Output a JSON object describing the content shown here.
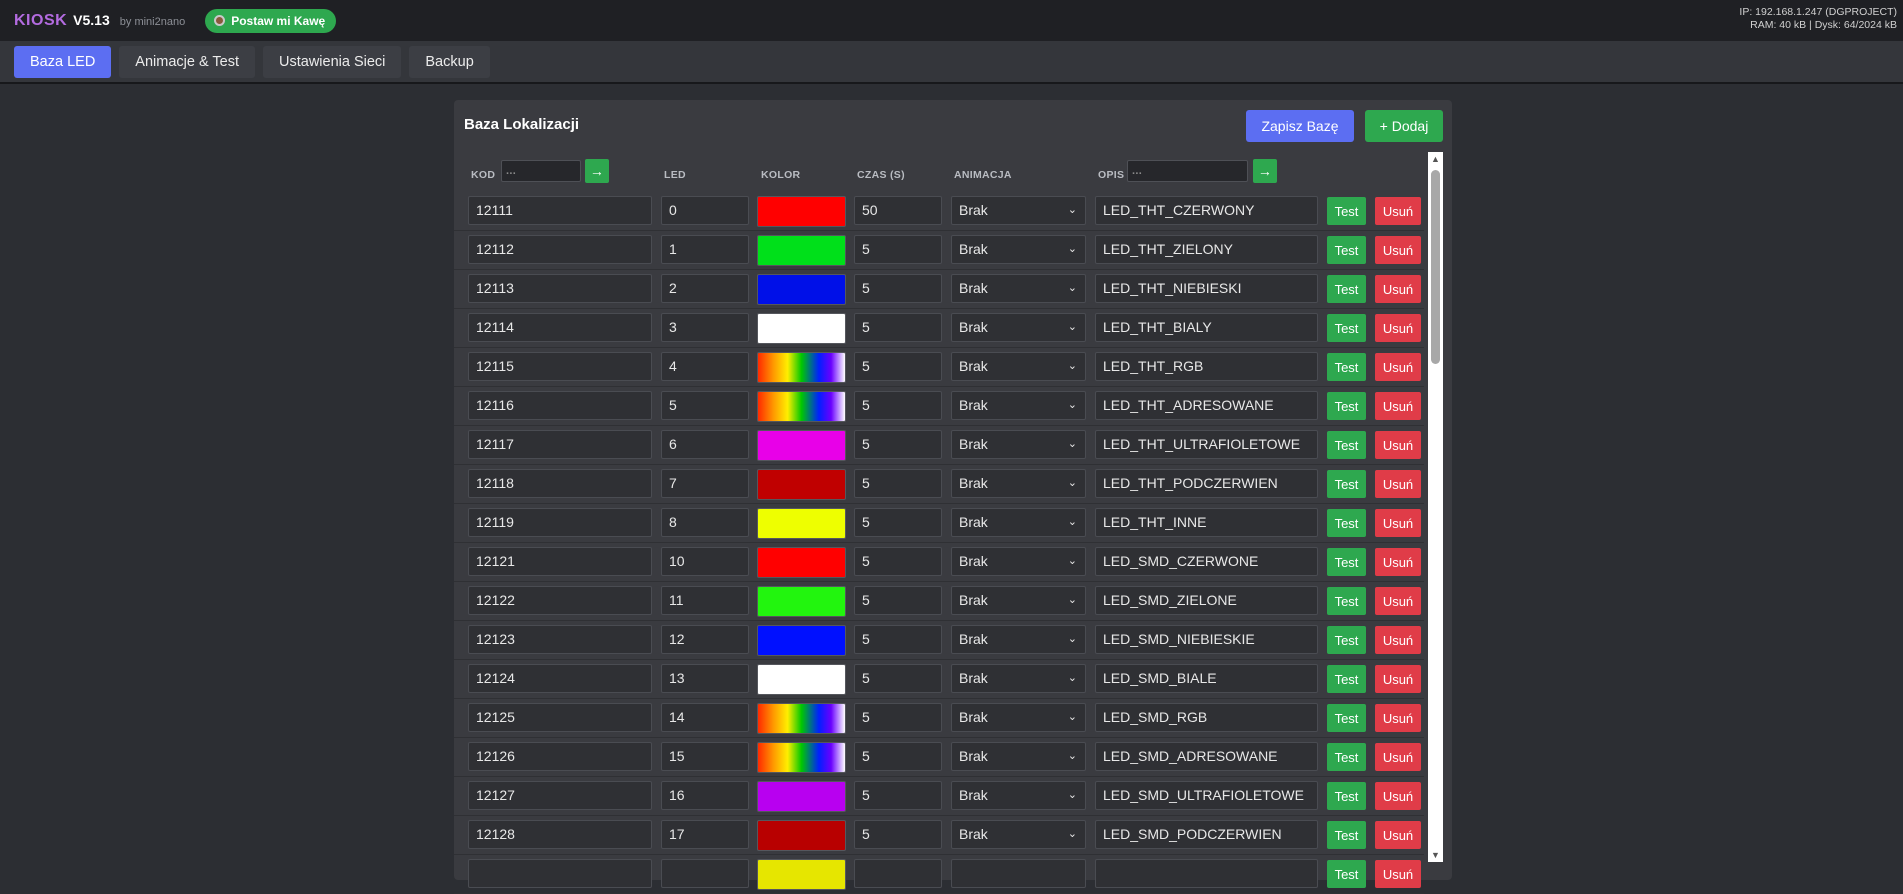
{
  "header": {
    "brand_name": "KIOSK",
    "brand_version": "V5.13",
    "brand_by": "by mini2nano",
    "coffee_label": "Postaw mi Kawę",
    "ip_line": "IP: 192.168.1.247 (DGPROJECT)",
    "mem_line": "RAM: 40 kB | Dysk: 64/2024 kB"
  },
  "nav": {
    "tabs": [
      {
        "label": "Baza LED",
        "active": true
      },
      {
        "label": "Animacje & Test",
        "active": false
      },
      {
        "label": "Ustawienia Sieci",
        "active": false
      },
      {
        "label": "Backup",
        "active": false
      }
    ]
  },
  "panel": {
    "title": "Baza Lokalizacji",
    "save_label": "Zapisz Bazę",
    "add_label": "+ Dodaj"
  },
  "table": {
    "headers": {
      "kod": "KOD",
      "led": "LED",
      "kolor": "KOLOR",
      "czas": "CZAS (S)",
      "animacja": "ANIMACJA",
      "opis": "OPIS"
    },
    "filter_kod_placeholder": "...",
    "filter_opis_placeholder": "...",
    "filter_go_symbol": "→",
    "test_label": "Test",
    "delete_label": "Usuń",
    "rows": [
      {
        "kod": "12111",
        "led": "0",
        "kolor": "#ff0000",
        "czas": "50",
        "animacja": "Brak",
        "opis": "LED_THT_CZERWONY"
      },
      {
        "kod": "12112",
        "led": "1",
        "kolor": "#00e01a",
        "czas": "5",
        "animacja": "Brak",
        "opis": "LED_THT_ZIELONY"
      },
      {
        "kod": "12113",
        "led": "2",
        "kolor": "#0010e8",
        "czas": "5",
        "animacja": "Brak",
        "opis": "LED_THT_NIEBIESKI"
      },
      {
        "kod": "12114",
        "led": "3",
        "kolor": "#ffffff",
        "czas": "5",
        "animacja": "Brak",
        "opis": "LED_THT_BIALY"
      },
      {
        "kod": "12115",
        "led": "4",
        "kolor": "rainbow",
        "czas": "5",
        "animacja": "Brak",
        "opis": "LED_THT_RGB"
      },
      {
        "kod": "12116",
        "led": "5",
        "kolor": "rainbow",
        "czas": "5",
        "animacja": "Brak",
        "opis": "LED_THT_ADRESOWANE"
      },
      {
        "kod": "12117",
        "led": "6",
        "kolor": "#e800e8",
        "czas": "5",
        "animacja": "Brak",
        "opis": "LED_THT_ULTRAFIOLETOWE"
      },
      {
        "kod": "12118",
        "led": "7",
        "kolor": "#c00000",
        "czas": "5",
        "animacja": "Brak",
        "opis": "LED_THT_PODCZERWIEN"
      },
      {
        "kod": "12119",
        "led": "8",
        "kolor": "#eeff00",
        "czas": "5",
        "animacja": "Brak",
        "opis": "LED_THT_INNE"
      },
      {
        "kod": "12121",
        "led": "10",
        "kolor": "#ff0000",
        "czas": "5",
        "animacja": "Brak",
        "opis": "LED_SMD_CZERWONE"
      },
      {
        "kod": "12122",
        "led": "11",
        "kolor": "#22f50e",
        "czas": "5",
        "animacja": "Brak",
        "opis": "LED_SMD_ZIELONE"
      },
      {
        "kod": "12123",
        "led": "12",
        "kolor": "#0010ff",
        "czas": "5",
        "animacja": "Brak",
        "opis": "LED_SMD_NIEBIESKIE"
      },
      {
        "kod": "12124",
        "led": "13",
        "kolor": "#ffffff",
        "czas": "5",
        "animacja": "Brak",
        "opis": "LED_SMD_BIALE"
      },
      {
        "kod": "12125",
        "led": "14",
        "kolor": "rainbow",
        "czas": "5",
        "animacja": "Brak",
        "opis": "LED_SMD_RGB"
      },
      {
        "kod": "12126",
        "led": "15",
        "kolor": "rainbow",
        "czas": "5",
        "animacja": "Brak",
        "opis": "LED_SMD_ADRESOWANE"
      },
      {
        "kod": "12127",
        "led": "16",
        "kolor": "#b800f0",
        "czas": "5",
        "animacja": "Brak",
        "opis": "LED_SMD_ULTRAFIOLETOWE"
      },
      {
        "kod": "12128",
        "led": "17",
        "kolor": "#b80000",
        "czas": "5",
        "animacja": "Brak",
        "opis": "LED_SMD_PODCZERWIEN"
      },
      {
        "kod": "",
        "led": "",
        "kolor": "#e6e600",
        "czas": "",
        "animacja": "",
        "opis": ""
      }
    ]
  }
}
